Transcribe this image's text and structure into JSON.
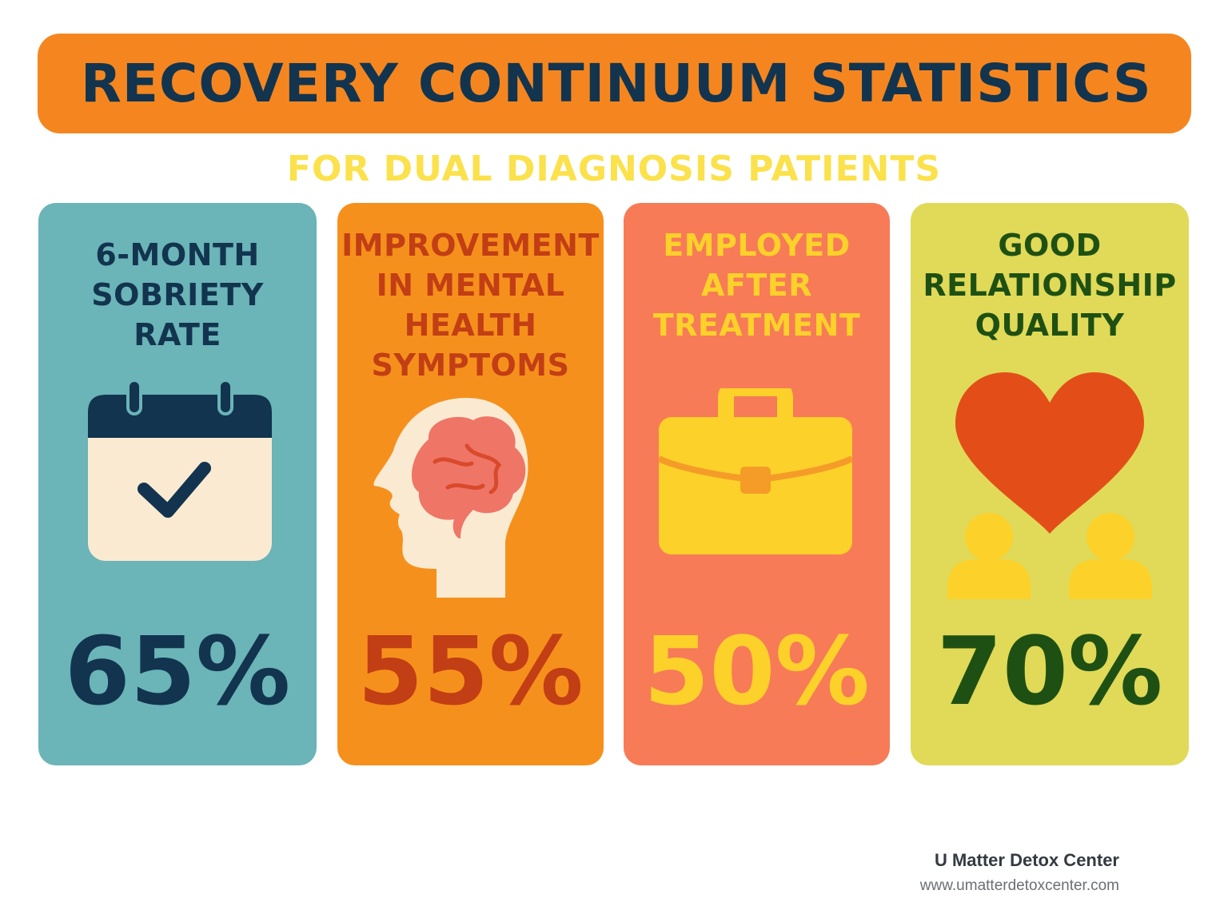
{
  "title": "RECOVERY CONTINUUM STATISTICS",
  "subtitle": "FOR DUAL DIAGNOSIS PATIENTS",
  "colors": {
    "banner": "#f5861f",
    "title_text": "#12344f",
    "subtitle_text": "#fbe14b"
  },
  "cards": [
    {
      "label_lines": [
        "6-MONTH",
        "SOBRIETY",
        "RATE"
      ],
      "value": "65%",
      "icon": "calendar-check-icon",
      "background": "#6bb4b8",
      "text_color": "#12344f"
    },
    {
      "label_lines": [
        "IMPROVEMENT",
        "IN MENTAL",
        "HEALTH",
        "SYMPTOMS"
      ],
      "value": "55%",
      "icon": "head-brain-icon",
      "background": "#f6901c",
      "text_color": "#c23e14"
    },
    {
      "label_lines": [
        "EMPLOYED",
        "AFTER",
        "TREATMENT"
      ],
      "value": "50%",
      "icon": "briefcase-icon",
      "background": "#f77b57",
      "text_color": "#fcd12a"
    },
    {
      "label_lines": [
        "GOOD",
        "RELATIONSHIP",
        "QUALITY"
      ],
      "value": "70%",
      "icon": "heart-people-icon",
      "background": "#e0da58",
      "text_color": "#1f5013"
    }
  ],
  "footer": {
    "organization": "U Matter Detox Center",
    "url": "www.umatterdetoxcenter.com"
  }
}
